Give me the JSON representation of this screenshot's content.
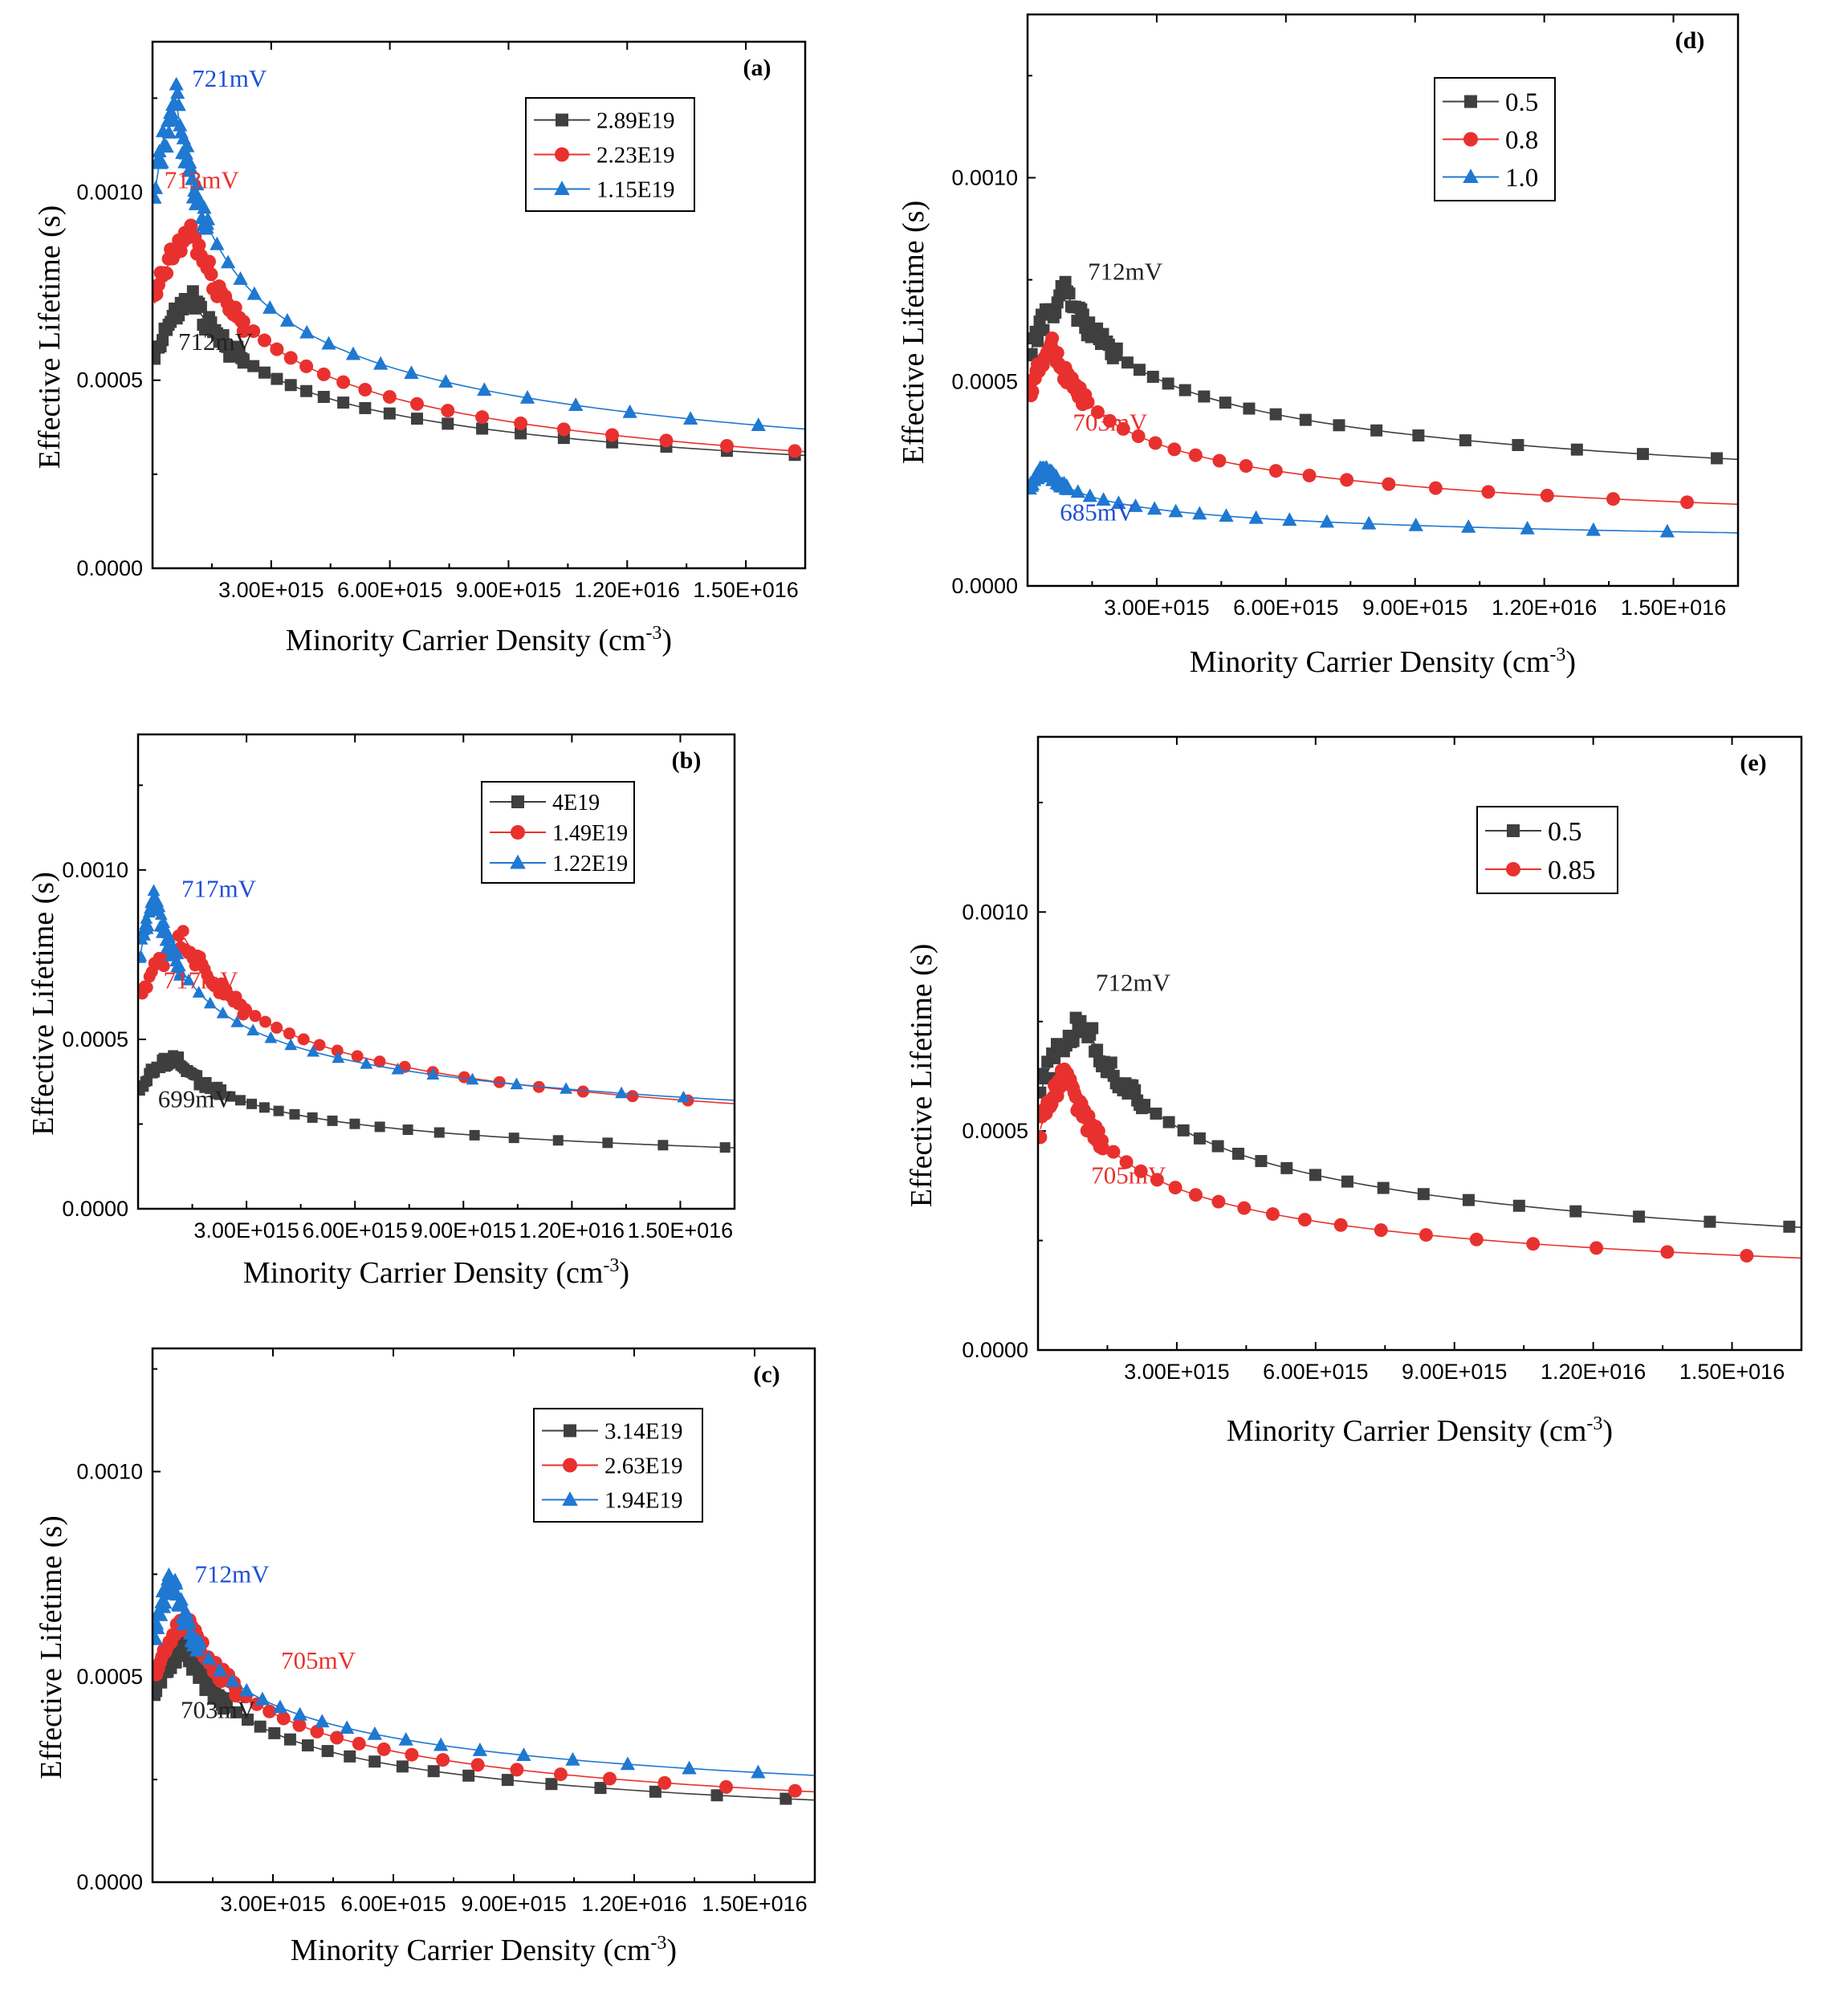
{
  "chart_data": [
    {
      "id": "a",
      "type": "scatter",
      "panel_label": "(a)",
      "xlabel": "Minority Carrier Density (cm-3)",
      "xlabel_main": "Minority Carrier Density (cm",
      "xlabel_sup": "-3",
      "xlabel_close": ")",
      "ylabel": "Effective Lifetime (s)",
      "xlim": [
        0,
        1.65e+16
      ],
      "ylim": [
        0,
        0.0014
      ],
      "x_ticks": [
        3000000000000000.0,
        6000000000000000.0,
        9000000000000000.0,
        1.2e+16,
        1.5e+16
      ],
      "x_tick_labels": [
        "3.00E+015",
        "6.00E+015",
        "9.00E+015",
        "1.20E+016",
        "1.50E+016"
      ],
      "y_ticks": [
        0,
        0.0005,
        0.001
      ],
      "y_tick_labels": [
        "0.0000",
        "0.0005",
        "0.0010"
      ],
      "legend_position": "top-right",
      "series": [
        {
          "name": "2.89E19",
          "color": "#3f3f3f",
          "marker": "square",
          "peak_x": 1000000000000000.0,
          "peak_y": 0.00072,
          "end_y": 0.0003
        },
        {
          "name": "2.23E19",
          "color": "#e8312e",
          "marker": "circle",
          "peak_x": 1000000000000000.0,
          "peak_y": 0.0009,
          "end_y": 0.00031
        },
        {
          "name": "1.15E19",
          "color": "#1f78d1",
          "marker": "triangle",
          "peak_x": 600000000000000.0,
          "peak_y": 0.00124,
          "end_y": 0.00037
        }
      ],
      "annotations": [
        {
          "text": "721mV",
          "color": "#1f4fd6",
          "x": 1000000000000000.0,
          "y": 0.00128
        },
        {
          "text": "713mV",
          "color": "#e8312e",
          "x": 300000000000000.0,
          "y": 0.00101
        },
        {
          "text": "712mV",
          "color": "#222222",
          "x": 650000000000000.0,
          "y": 0.00058
        }
      ]
    },
    {
      "id": "b",
      "type": "scatter",
      "panel_label": "(b)",
      "xlabel": "Minority Carrier Density (cm-3)",
      "xlabel_main": "Minority Carrier Density (cm",
      "xlabel_sup": "-3",
      "xlabel_close": ")",
      "ylabel": "Effective Lifetime (s)",
      "xlim": [
        0,
        1.65e+16
      ],
      "ylim": [
        0,
        0.0014
      ],
      "x_ticks": [
        3000000000000000.0,
        6000000000000000.0,
        9000000000000000.0,
        1.2e+16,
        1.5e+16
      ],
      "x_tick_labels": [
        "3.00E+015",
        "6.00E+015",
        "9.00E+015",
        "1.20E+016",
        "1.50E+016"
      ],
      "y_ticks": [
        0,
        0.0005,
        0.001
      ],
      "y_tick_labels": [
        "0.0000",
        "0.0005",
        "0.0010"
      ],
      "legend_position": "top-right",
      "series": [
        {
          "name": "4E19",
          "color": "#3f3f3f",
          "marker": "square",
          "peak_x": 1000000000000000.0,
          "peak_y": 0.00045,
          "end_y": 0.00018
        },
        {
          "name": "1.49E19",
          "color": "#e8312e",
          "marker": "circle",
          "peak_x": 1300000000000000.0,
          "peak_y": 0.0008,
          "end_y": 0.00031
        },
        {
          "name": "1.22E19",
          "color": "#1f78d1",
          "marker": "triangle",
          "peak_x": 500000000000000.0,
          "peak_y": 0.00092,
          "end_y": 0.00032
        }
      ],
      "annotations": [
        {
          "text": "717mV",
          "color": "#1f4fd6",
          "x": 1200000000000000.0,
          "y": 0.00092
        },
        {
          "text": "717mV",
          "color": "#e8312e",
          "x": 700000000000000.0,
          "y": 0.00065
        },
        {
          "text": "699mV",
          "color": "#222222",
          "x": 550000000000000.0,
          "y": 0.0003
        }
      ]
    },
    {
      "id": "c",
      "type": "scatter",
      "panel_label": "(c)",
      "xlabel": "Minority Carrier Density (cm-3)",
      "xlabel_main": "Minority Carrier Density (cm",
      "xlabel_sup": "-3",
      "xlabel_close": ")",
      "ylabel": "Effective Lifetime (s)",
      "xlim": [
        0,
        1.65e+16
      ],
      "ylim": [
        0,
        0.0013
      ],
      "x_ticks": [
        3000000000000000.0,
        6000000000000000.0,
        9000000000000000.0,
        1.2e+16,
        1.5e+16
      ],
      "x_tick_labels": [
        "3.00E+015",
        "6.00E+015",
        "9.00E+015",
        "1.20E+016",
        "1.50E+016"
      ],
      "y_ticks": [
        0,
        0.0005,
        0.001
      ],
      "y_tick_labels": [
        "0.0000",
        "0.0005",
        "0.0010"
      ],
      "legend_position": "top-right",
      "series": [
        {
          "name": "3.14E19",
          "color": "#3f3f3f",
          "marker": "square",
          "peak_x": 800000000000000.0,
          "peak_y": 0.00058,
          "end_y": 0.0002
        },
        {
          "name": "2.63E19",
          "color": "#e8312e",
          "marker": "circle",
          "peak_x": 900000000000000.0,
          "peak_y": 0.00064,
          "end_y": 0.00022
        },
        {
          "name": "1.94E19",
          "color": "#1f78d1",
          "marker": "triangle",
          "peak_x": 500000000000000.0,
          "peak_y": 0.00074,
          "end_y": 0.00026
        }
      ],
      "annotations": [
        {
          "text": "712mV",
          "color": "#1f4fd6",
          "x": 1050000000000000.0,
          "y": 0.00073
        },
        {
          "text": "705mV",
          "color": "#e8312e",
          "x": 3200000000000000.0,
          "y": 0.00052
        },
        {
          "text": "703mV",
          "color": "#222222",
          "x": 700000000000000.0,
          "y": 0.0004
        }
      ]
    },
    {
      "id": "d",
      "type": "scatter",
      "panel_label": "(d)",
      "xlabel": "Minority Carrier Density (cm-3)",
      "xlabel_main": "Minority Carrier Density (cm",
      "xlabel_sup": "-3",
      "xlabel_close": ")",
      "ylabel": "Effective Lifetime (s)",
      "xlim": [
        0,
        1.65e+16
      ],
      "ylim": [
        0,
        0.0014
      ],
      "x_ticks": [
        3000000000000000.0,
        6000000000000000.0,
        9000000000000000.0,
        1.2e+16,
        1.5e+16
      ],
      "x_tick_labels": [
        "3.00E+015",
        "6.00E+015",
        "9.00E+015",
        "1.20E+016",
        "1.50E+016"
      ],
      "y_ticks": [
        0,
        0.0005,
        0.001
      ],
      "y_tick_labels": [
        "0.0000",
        "0.0005",
        "0.0010"
      ],
      "legend_position": "top-center",
      "series": [
        {
          "name": "0.5",
          "color": "#3f3f3f",
          "marker": "square",
          "peak_x": 900000000000000.0,
          "peak_y": 0.00072,
          "end_y": 0.00031
        },
        {
          "name": "0.8",
          "color": "#e8312e",
          "marker": "circle",
          "peak_x": 600000000000000.0,
          "peak_y": 0.00059,
          "end_y": 0.0002
        },
        {
          "name": "1.0",
          "color": "#1f78d1",
          "marker": "triangle",
          "peak_x": 400000000000000.0,
          "peak_y": 0.00029,
          "end_y": 0.00013
        }
      ],
      "annotations": [
        {
          "text": "712mV",
          "color": "#222222",
          "x": 1400000000000000.0,
          "y": 0.00075
        },
        {
          "text": "703mV",
          "color": "#e8312e",
          "x": 1050000000000000.0,
          "y": 0.00038
        },
        {
          "text": "685mV",
          "color": "#1f4fd6",
          "x": 750000000000000.0,
          "y": 0.00016
        }
      ]
    },
    {
      "id": "e",
      "type": "scatter",
      "panel_label": "(e)",
      "xlabel": "Minority Carrier Density (cm-3)",
      "xlabel_main": "Minority Carrier Density (cm",
      "xlabel_sup": "-3",
      "xlabel_close": ")",
      "ylabel": "Effective Lifetime (s)",
      "xlim": [
        0,
        1.65e+16
      ],
      "ylim": [
        0,
        0.0014
      ],
      "x_ticks": [
        3000000000000000.0,
        6000000000000000.0,
        9000000000000000.0,
        1.2e+16,
        1.5e+16
      ],
      "x_tick_labels": [
        "3.00E+015",
        "6.00E+015",
        "9.00E+015",
        "1.20E+016",
        "1.50E+016"
      ],
      "y_ticks": [
        0,
        0.0005,
        0.001
      ],
      "y_tick_labels": [
        "0.0000",
        "0.0005",
        "0.0010"
      ],
      "legend_position": "top-center",
      "series": [
        {
          "name": "0.5",
          "color": "#3f3f3f",
          "marker": "square",
          "peak_x": 1000000000000000.0,
          "peak_y": 0.00075,
          "end_y": 0.00028
        },
        {
          "name": "0.85",
          "color": "#e8312e",
          "marker": "circle",
          "peak_x": 600000000000000.0,
          "peak_y": 0.00063,
          "end_y": 0.00021
        }
      ],
      "annotations": [
        {
          "text": "712mV",
          "color": "#222222",
          "x": 1250000000000000.0,
          "y": 0.00082
        },
        {
          "text": "705mV",
          "color": "#e8312e",
          "x": 1150000000000000.0,
          "y": 0.00038
        }
      ]
    }
  ]
}
